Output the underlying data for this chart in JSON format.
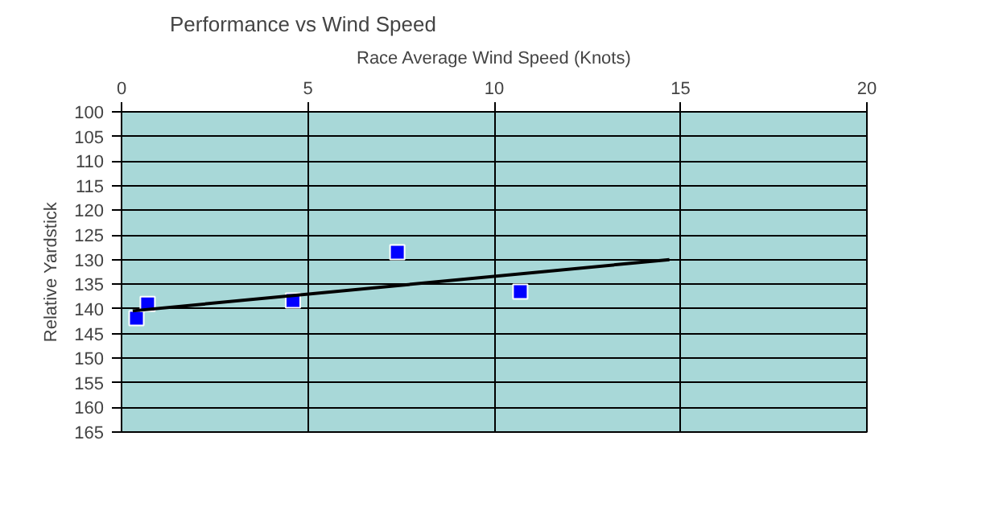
{
  "chart_data": {
    "type": "scatter",
    "title": "Performance vs Wind Speed",
    "xlabel": "Race Average Wind Speed (Knots)",
    "ylabel": "Relative Yardstick",
    "x": [
      0.4,
      0.7,
      4.6,
      7.4,
      10.7
    ],
    "series": [
      {
        "color": "#0000ff",
        "values": [
          141.9,
          139,
          138.3,
          128.5,
          136.5
        ],
        "marker": "square"
      },
      {
        "type": "line",
        "color": "#000000",
        "x": [
          0.3,
          14.7
        ],
        "values": [
          140.4,
          130
        ],
        "marker": "none",
        "line_style": "solid"
      }
    ],
    "xlim": [
      0,
      20
    ],
    "xticks": [
      0,
      5,
      10,
      15,
      20
    ],
    "ylim": [
      165,
      100
    ],
    "yticks": [
      100,
      105,
      110,
      115,
      120,
      125,
      130,
      135,
      140,
      145,
      150,
      155,
      160,
      165
    ],
    "grid": true
  }
}
